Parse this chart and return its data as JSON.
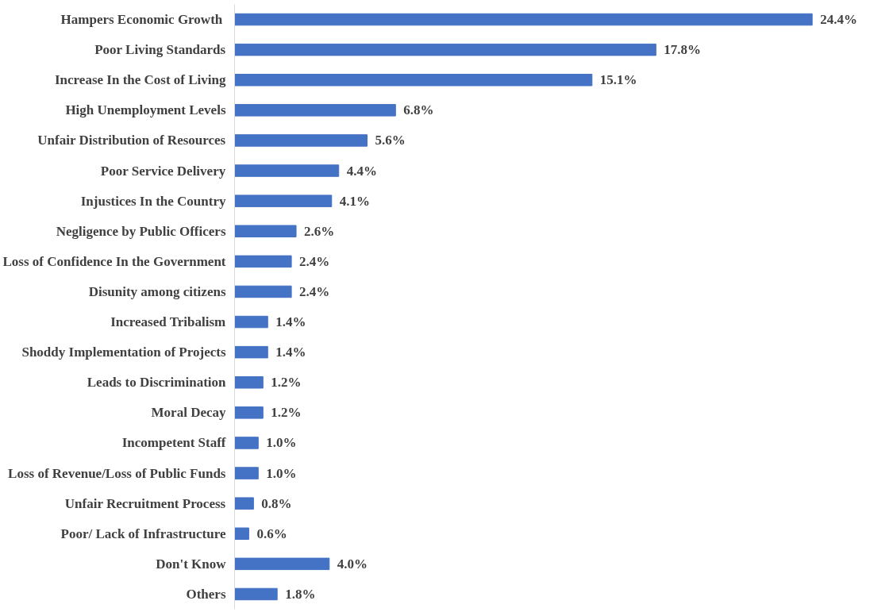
{
  "chart_data": {
    "type": "bar",
    "orientation": "horizontal",
    "categories": [
      "Hampers Economic  Growth",
      "Poor Living Standards",
      "Increase In the Cost of Living",
      "High Unemployment Levels",
      "Unfair Distribution of Resources",
      "Poor Service Delivery",
      "Injustices In the Country",
      "Negligence by Public Officers",
      "Loss of Confidence In the Government",
      "Disunity among citizens",
      "Increased Tribalism",
      "Shoddy Implementation of Projects",
      "Leads to Discrimination",
      "Moral Decay",
      "Incompetent Staff",
      "Loss of Revenue/Loss of Public Funds",
      "Unfair Recruitment Process",
      "Poor/ Lack of Infrastructure",
      "Don't Know",
      "Others"
    ],
    "values": [
      24.4,
      17.8,
      15.1,
      6.8,
      5.6,
      4.4,
      4.1,
      2.6,
      2.4,
      2.4,
      1.4,
      1.4,
      1.2,
      1.2,
      1.0,
      1.0,
      0.8,
      0.6,
      4.0,
      1.8
    ],
    "value_labels": [
      "24.4%",
      "17.8%",
      "15.1%",
      "6.8%",
      "5.6%",
      "4.4%",
      "4.1%",
      "2.6%",
      "2.4%",
      "2.4%",
      "1.4%",
      "1.4%",
      "1.2%",
      "1.2%",
      "1.0%",
      "1.0%",
      "0.8%",
      "0.6%",
      "4.0%",
      "1.8%"
    ],
    "color": "#4472c4",
    "grid": false
  }
}
